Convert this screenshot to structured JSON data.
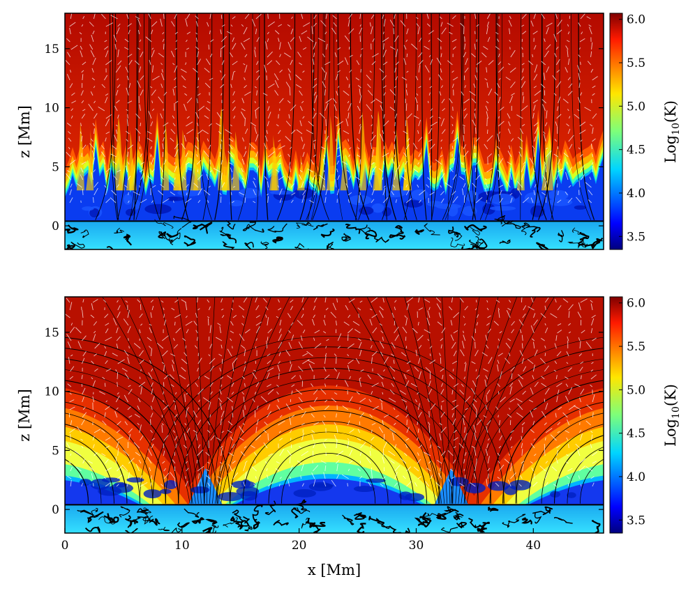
{
  "chart_data": [
    {
      "type": "heatmap",
      "panel": "top",
      "title": "",
      "xlabel": "",
      "ylabel": "z [Mm]",
      "xlim": [
        0,
        46
      ],
      "ylim": [
        -2,
        18
      ],
      "xticks": [],
      "yticks": [
        0,
        5,
        10,
        15
      ],
      "colorbar": {
        "label_base": "Log",
        "label_sub": "10",
        "label_unit": "(K)",
        "range": [
          3.35,
          6.07
        ],
        "ticks": [
          3.5,
          4.0,
          4.5,
          5.0,
          5.5,
          6.0
        ],
        "colormap": "jet"
      },
      "structure": {
        "corona_log10K": 6.0,
        "chromosphere_log10K": 3.7,
        "convection_log10K": 4.1,
        "photosphere_z": 0,
        "transition_region_z_range": [
          1.5,
          6
        ]
      },
      "overlays": [
        "magnetic field lines (black)",
        "velocity vectors (white arrows)"
      ]
    },
    {
      "type": "heatmap",
      "panel": "bottom",
      "title": "",
      "xlabel": "x [Mm]",
      "ylabel": "z [Mm]",
      "xlim": [
        0,
        46
      ],
      "ylim": [
        -2,
        18
      ],
      "xticks": [
        0,
        10,
        20,
        30,
        40
      ],
      "yticks": [
        0,
        5,
        10,
        15
      ],
      "colorbar": {
        "label_base": "Log",
        "label_sub": "10",
        "label_unit": "(K)",
        "range": [
          3.35,
          6.07
        ],
        "ticks": [
          3.5,
          4.0,
          4.5,
          5.0,
          5.5,
          6.0
        ],
        "colormap": "jet"
      },
      "structure": {
        "loop_footpoints_x": [
          0,
          12,
          33,
          46
        ],
        "loop_apex_centers_x": [
          23,
          0,
          46
        ],
        "corona_log10K": 6.0,
        "chromosphere_log10K": 3.7,
        "convection_log10K": 4.1
      },
      "overlays": [
        "magnetic field lines (black, arched loops)",
        "velocity vectors (white arrows)"
      ]
    }
  ]
}
